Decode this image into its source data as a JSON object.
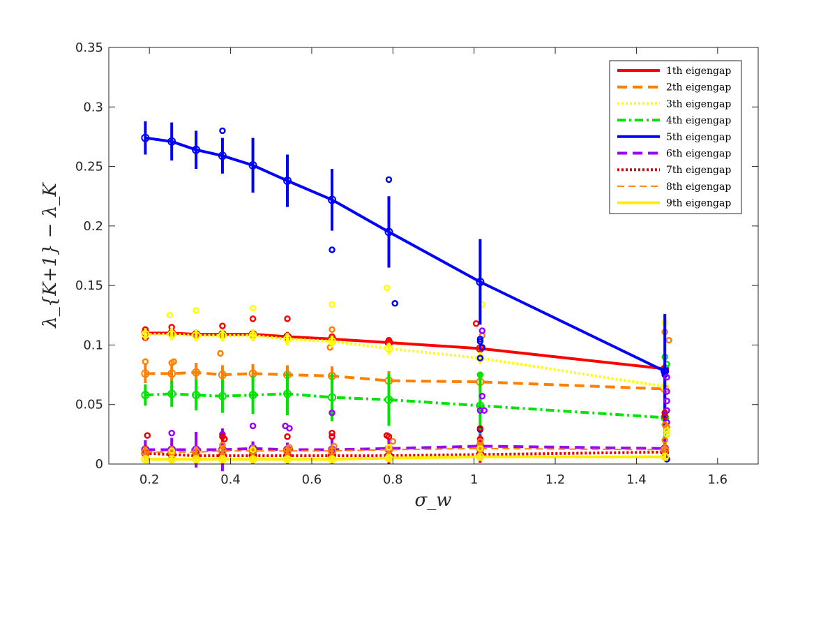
{
  "chart_data": {
    "type": "line",
    "title": "",
    "xlabel": "σ_w",
    "ylabel": "λ_{K+1} − λ_K",
    "xlim": [
      0.1,
      1.7
    ],
    "ylim": [
      0,
      0.35
    ],
    "xticks": [
      "0.2",
      "0.4",
      "0.6",
      "0.8",
      "1",
      "1.2",
      "1.4",
      "1.6"
    ],
    "yticks": [
      "0",
      "0.05",
      "0.1",
      "0.15",
      "0.2",
      "0.25",
      "0.3",
      "0.35"
    ],
    "grid": false,
    "legend_position": "top-right",
    "x": [
      0.19,
      0.255,
      0.315,
      0.38,
      0.455,
      0.54,
      0.65,
      0.79,
      1.015,
      1.47
    ],
    "series": [
      {
        "name": "1th eigengap",
        "color": "#ff0000",
        "style": "solid",
        "width": 4,
        "values": [
          0.11,
          0.11,
          0.109,
          0.109,
          0.109,
          0.107,
          0.105,
          0.102,
          0.097,
          0.08
        ],
        "err": [
          0.004,
          0.004,
          0.004,
          0.004,
          0.004,
          0.004,
          0.004,
          0.004,
          0.004,
          0.004
        ],
        "outliers": [
          [
            0.19,
            0.113
          ],
          [
            0.19,
            0.106
          ],
          [
            0.255,
            0.115
          ],
          [
            0.38,
            0.116
          ],
          [
            0.455,
            0.122
          ],
          [
            0.54,
            0.122
          ],
          [
            0.65,
            0.107
          ],
          [
            0.79,
            0.104
          ],
          [
            1.005,
            0.118
          ],
          [
            1.47,
            0.081
          ]
        ]
      },
      {
        "name": "2th eigengap",
        "color": "#ff8000",
        "style": "dash",
        "width": 4,
        "values": [
          0.076,
          0.076,
          0.077,
          0.075,
          0.076,
          0.075,
          0.074,
          0.07,
          0.069,
          0.063
        ],
        "err": [
          0.008,
          0.008,
          0.008,
          0.008,
          0.008,
          0.008,
          0.008,
          0.008,
          0.008,
          0.008
        ],
        "outliers": [
          [
            0.19,
            0.086
          ],
          [
            0.255,
            0.085
          ],
          [
            0.26,
            0.086
          ],
          [
            0.375,
            0.093
          ],
          [
            0.65,
            0.113
          ],
          [
            0.645,
            0.098
          ],
          [
            1.02,
            0.108
          ],
          [
            1.47,
            0.111
          ],
          [
            1.48,
            0.104
          ]
        ]
      },
      {
        "name": "3th eigengap",
        "color": "#ffff00",
        "style": "dot",
        "width": 4,
        "values": [
          0.109,
          0.109,
          0.108,
          0.108,
          0.108,
          0.105,
          0.103,
          0.097,
          0.089,
          0.065
        ],
        "err": [
          0.005,
          0.005,
          0.005,
          0.005,
          0.005,
          0.005,
          0.005,
          0.005,
          0.005,
          0.005
        ],
        "outliers": [
          [
            0.25,
            0.125
          ],
          [
            0.315,
            0.129
          ],
          [
            0.455,
            0.131
          ],
          [
            0.65,
            0.134
          ],
          [
            0.785,
            0.148
          ],
          [
            1.02,
            0.134
          ],
          [
            1.47,
            0.119
          ]
        ]
      },
      {
        "name": "4th eigengap",
        "color": "#00e400",
        "style": "dashdot",
        "width": 4,
        "values": [
          0.058,
          0.059,
          0.058,
          0.057,
          0.058,
          0.059,
          0.056,
          0.054,
          0.049,
          0.039
        ],
        "err": [
          0.009,
          0.011,
          0.013,
          0.014,
          0.016,
          0.018,
          0.02,
          0.022,
          0.028,
          0.032
        ],
        "outliers": [
          [
            1.015,
            0.075
          ],
          [
            1.475,
            0.084
          ],
          [
            1.47,
            0.09
          ]
        ]
      },
      {
        "name": "5th eigengap",
        "color": "#0000ff",
        "style": "solid",
        "width": 4,
        "values": [
          0.274,
          0.271,
          0.264,
          0.259,
          0.251,
          0.238,
          0.222,
          0.195,
          0.153,
          0.078
        ],
        "err": [
          0.014,
          0.016,
          0.016,
          0.015,
          0.023,
          0.022,
          0.026,
          0.03,
          0.036,
          0.048
        ],
        "outliers": [
          [
            0.38,
            0.28
          ],
          [
            0.65,
            0.18
          ],
          [
            0.79,
            0.239
          ],
          [
            0.805,
            0.135
          ],
          [
            1.015,
            0.105
          ],
          [
            1.015,
            0.103
          ],
          [
            1.02,
            0.098
          ],
          [
            1.015,
            0.089
          ],
          [
            1.015,
            0.029
          ],
          [
            1.47,
            0.078
          ],
          [
            1.47,
            0.075
          ],
          [
            1.475,
            0.004
          ]
        ]
      },
      {
        "name": "6th eigengap",
        "color": "#9900ff",
        "style": "dash",
        "width": 4,
        "values": [
          0.012,
          0.012,
          0.012,
          0.012,
          0.013,
          0.012,
          0.012,
          0.013,
          0.015,
          0.013
        ],
        "err": [
          0.008,
          0.01,
          0.015,
          0.018,
          0.006,
          0.006,
          0.01,
          0.008,
          0.01,
          0.01
        ],
        "outliers": [
          [
            0.255,
            0.026
          ],
          [
            0.38,
            0.025
          ],
          [
            0.455,
            0.032
          ],
          [
            0.535,
            0.032
          ],
          [
            0.545,
            0.03
          ],
          [
            0.65,
            0.043
          ],
          [
            1.02,
            0.057
          ],
          [
            1.015,
            0.045
          ],
          [
            1.025,
            0.045
          ],
          [
            1.02,
            0.112
          ],
          [
            1.475,
            0.061
          ],
          [
            1.475,
            0.053
          ],
          [
            1.475,
            0.045
          ],
          [
            1.475,
            0.035
          ],
          [
            1.475,
            0.073
          ]
        ]
      },
      {
        "name": "7th eigengap",
        "color": "#e60000",
        "style": "dot",
        "width": 4,
        "values": [
          0.009,
          0.008,
          0.007,
          0.007,
          0.007,
          0.007,
          0.007,
          0.007,
          0.008,
          0.01
        ],
        "err": [
          0.007,
          0.007,
          0.007,
          0.007,
          0.007,
          0.007,
          0.007,
          0.007,
          0.007,
          0.007
        ],
        "outliers": [
          [
            0.195,
            0.024
          ],
          [
            0.38,
            0.023
          ],
          [
            0.385,
            0.021
          ],
          [
            0.54,
            0.023
          ],
          [
            0.65,
            0.026
          ],
          [
            0.65,
            0.023
          ],
          [
            0.785,
            0.024
          ],
          [
            0.79,
            0.023
          ],
          [
            1.015,
            0.03
          ],
          [
            1.015,
            0.021
          ],
          [
            1.47,
            0.04
          ],
          [
            1.47,
            0.043
          ]
        ]
      },
      {
        "name": "8th eigengap",
        "color": "#ff8000",
        "style": "dash",
        "width": 2,
        "values": [
          0.01,
          0.01,
          0.01,
          0.011,
          0.011,
          0.011,
          0.011,
          0.012,
          0.013,
          0.012
        ],
        "err": [
          0.005,
          0.005,
          0.005,
          0.005,
          0.005,
          0.005,
          0.005,
          0.005,
          0.005,
          0.005
        ],
        "outliers": [
          [
            0.38,
            0.016
          ],
          [
            0.545,
            0.014
          ],
          [
            0.655,
            0.015
          ],
          [
            0.8,
            0.019
          ],
          [
            1.015,
            0.019
          ],
          [
            1.015,
            0.016
          ],
          [
            1.47,
            0.033
          ],
          [
            1.475,
            0.031
          ],
          [
            1.47,
            0.02
          ]
        ]
      },
      {
        "name": "9th eigengap",
        "color": "#ffee00",
        "style": "solid",
        "width": 4,
        "values": [
          0.004,
          0.004,
          0.004,
          0.004,
          0.004,
          0.004,
          0.004,
          0.005,
          0.006,
          0.006
        ],
        "err": [
          0.003,
          0.003,
          0.003,
          0.003,
          0.003,
          0.003,
          0.003,
          0.003,
          0.003,
          0.003
        ],
        "outliers": [
          [
            0.255,
            0.011
          ],
          [
            0.455,
            0.012
          ],
          [
            0.79,
            0.014
          ],
          [
            1.015,
            0.013
          ],
          [
            1.475,
            0.028
          ],
          [
            1.475,
            0.025
          ]
        ]
      }
    ]
  }
}
